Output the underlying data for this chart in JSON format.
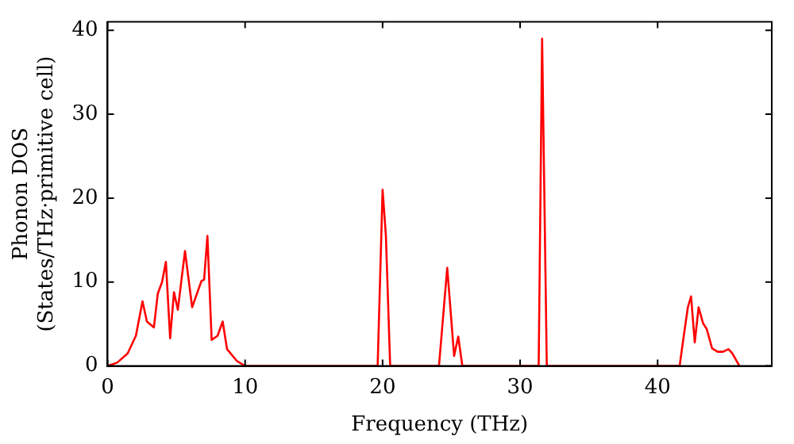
{
  "chart_data": {
    "type": "line",
    "xlabel": "Frequency (THz)",
    "ylabel": "Phonon DOS\n(States/THz·primitive cell)",
    "xlim": [
      0,
      48.3
    ],
    "ylim": [
      0,
      41
    ],
    "xticks": [
      0,
      10,
      20,
      30,
      40
    ],
    "yticks": [
      0,
      10,
      20,
      30,
      40
    ],
    "grid": false,
    "legend": false,
    "marker": "none",
    "line_style": "solid",
    "series": [
      {
        "color": "#ff0000",
        "x": [
          0,
          0.7,
          1.46,
          2.06,
          2.54,
          2.86,
          3.37,
          3.65,
          3.96,
          4.24,
          4.55,
          4.83,
          5.11,
          5.63,
          6.15,
          6.82,
          7.02,
          7.26,
          7.57,
          8.0,
          8.37,
          8.69,
          9.4,
          10,
          19.64,
          20.0,
          20.24,
          20.55,
          24.1,
          24.7,
          25.2,
          25.5,
          25.8,
          31.35,
          31.6,
          31.94,
          41.6,
          41.97,
          42.2,
          42.43,
          42.7,
          42.98,
          43.3,
          43.57,
          43.96,
          44.36,
          44.76,
          45.15,
          45.43,
          45.95
        ],
        "values": [
          0,
          0.4,
          1.5,
          3.6,
          7.7,
          5.3,
          4.6,
          8.6,
          10,
          12.4,
          3.3,
          8.8,
          6.7,
          13.7,
          7.0,
          10.1,
          10.3,
          15.5,
          3.1,
          3.6,
          5.3,
          2.0,
          0.6,
          0,
          0,
          21.0,
          15.5,
          0,
          0,
          11.7,
          1.2,
          3.5,
          0,
          0,
          39,
          0,
          0,
          4.4,
          7.0,
          8.3,
          2.8,
          7.0,
          5.1,
          4.4,
          2.1,
          1.7,
          1.7,
          2.0,
          1.5,
          0
        ]
      }
    ]
  }
}
